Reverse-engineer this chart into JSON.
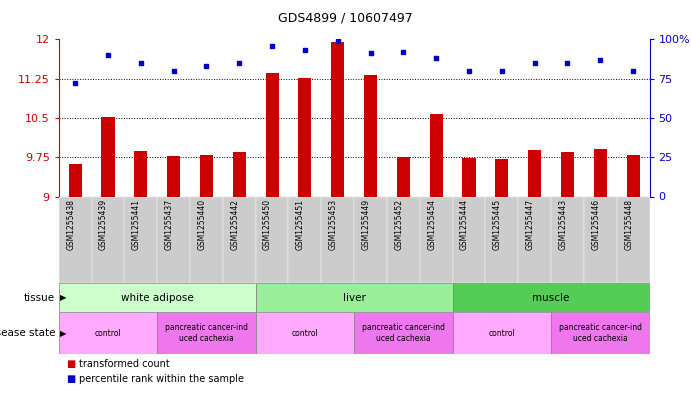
{
  "title": "GDS4899 / 10607497",
  "samples": [
    "GSM1255438",
    "GSM1255439",
    "GSM1255441",
    "GSM1255437",
    "GSM1255440",
    "GSM1255442",
    "GSM1255450",
    "GSM1255451",
    "GSM1255453",
    "GSM1255449",
    "GSM1255452",
    "GSM1255454",
    "GSM1255444",
    "GSM1255445",
    "GSM1255447",
    "GSM1255443",
    "GSM1255446",
    "GSM1255448"
  ],
  "red_values": [
    9.62,
    10.52,
    9.87,
    9.77,
    9.8,
    9.84,
    11.35,
    11.27,
    11.95,
    11.32,
    9.75,
    10.57,
    9.74,
    9.72,
    9.88,
    9.84,
    9.91,
    9.79
  ],
  "blue_values": [
    72,
    90,
    85,
    80,
    83,
    85,
    96,
    93,
    99,
    91,
    92,
    88,
    80,
    80,
    85,
    85,
    87,
    80
  ],
  "ymin": 9.0,
  "ymax": 12.0,
  "yticks": [
    9.0,
    9.75,
    10.5,
    11.25,
    12.0
  ],
  "ytick_labels": [
    "9",
    "9.75",
    "10.5",
    "11.25",
    "12"
  ],
  "right_yticks": [
    0,
    25,
    50,
    75,
    100
  ],
  "right_ytick_labels": [
    "0",
    "25",
    "50",
    "75",
    "100%"
  ],
  "bar_color": "#cc0000",
  "dot_color": "#0000cc",
  "tissue_groups": [
    {
      "label": "white adipose",
      "start": 0,
      "end": 6,
      "color": "#ccffcc"
    },
    {
      "label": "liver",
      "start": 6,
      "end": 12,
      "color": "#99ee99"
    },
    {
      "label": "muscle",
      "start": 12,
      "end": 18,
      "color": "#55cc55"
    }
  ],
  "disease_groups": [
    {
      "label": "control",
      "start": 0,
      "end": 3,
      "color": "#ffaaff"
    },
    {
      "label": "pancreatic cancer-ind\nuced cachexia",
      "start": 3,
      "end": 6,
      "color": "#ee77ee"
    },
    {
      "label": "control",
      "start": 6,
      "end": 9,
      "color": "#ffaaff"
    },
    {
      "label": "pancreatic cancer-ind\nuced cachexia",
      "start": 9,
      "end": 12,
      "color": "#ee77ee"
    },
    {
      "label": "control",
      "start": 12,
      "end": 15,
      "color": "#ffaaff"
    },
    {
      "label": "pancreatic cancer-ind\nuced cachexia",
      "start": 15,
      "end": 18,
      "color": "#ee77ee"
    }
  ]
}
